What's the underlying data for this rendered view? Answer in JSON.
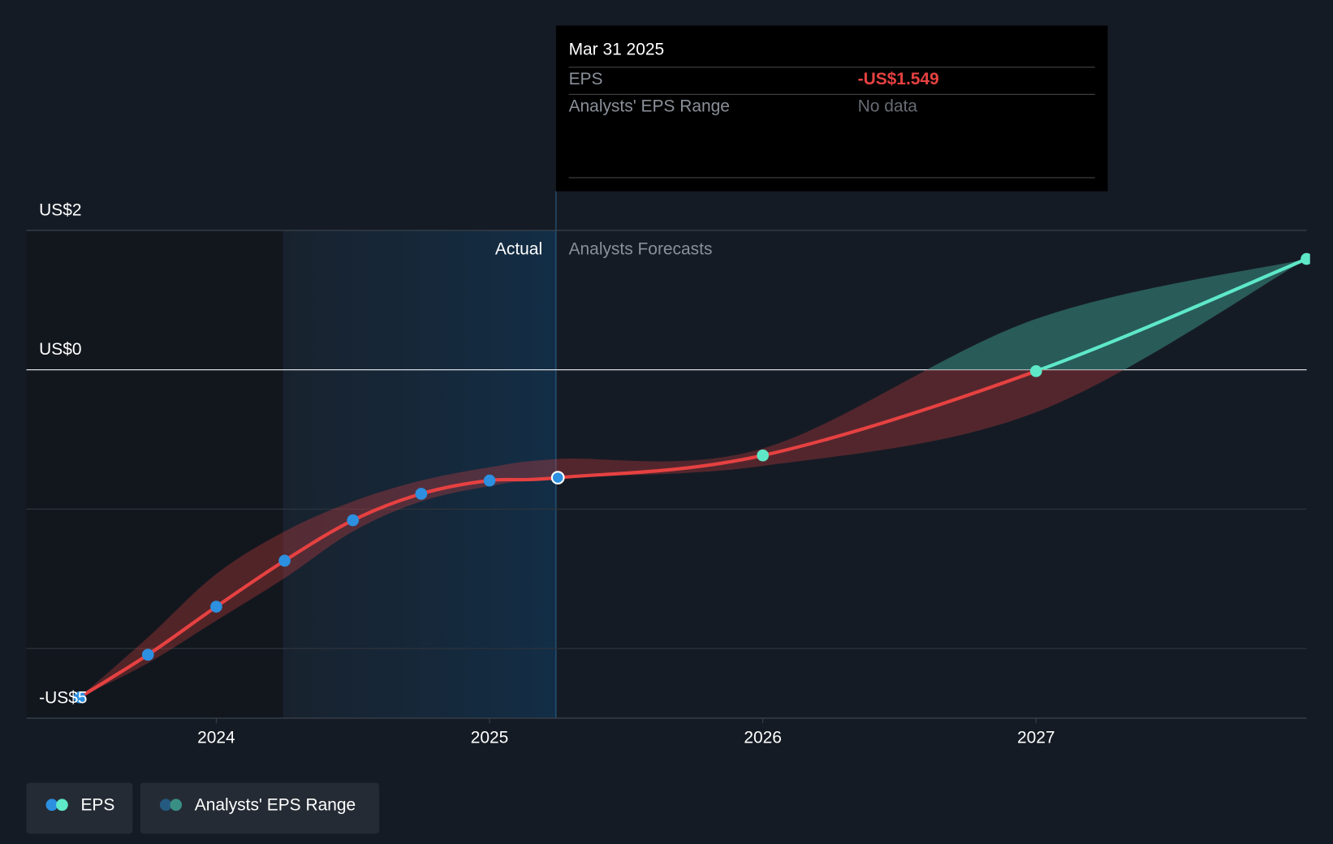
{
  "chart_data": {
    "type": "line",
    "x": [
      2023.5,
      2023.75,
      2024.0,
      2024.25,
      2024.5,
      2024.75,
      2025.0,
      2025.25,
      2026.0,
      2027.0,
      2027.99
    ],
    "xlim": [
      2023.305,
      2027.99
    ],
    "xticks": [
      2024,
      2025,
      2026,
      2027
    ],
    "ylim": [
      -5,
      2
    ],
    "yticks": [
      {
        "value": 2,
        "label": "US$2"
      },
      {
        "value": 0,
        "label": "US$0"
      },
      {
        "value": -5,
        "label": "-US$5"
      }
    ],
    "minor_gridlines": [
      -2,
      -4
    ],
    "series": [
      {
        "name": "EPS",
        "color": "#e64141",
        "positive_color": "#5ee8c8",
        "values": [
          -4.7,
          -4.09,
          -3.4,
          -2.74,
          -2.16,
          -1.78,
          -1.59,
          -1.549,
          -1.23,
          -0.02,
          1.59
        ]
      }
    ],
    "range": {
      "name": "Analysts' EPS Range",
      "color": "#e64141",
      "positive_color": "#3a8f85",
      "lower": [
        -4.7,
        -4.21,
        -3.6,
        -2.99,
        -2.32,
        -1.89,
        -1.67,
        -1.549,
        -1.38,
        -0.61,
        1.59
      ],
      "upper": [
        -4.7,
        -3.84,
        -2.93,
        -2.32,
        -1.89,
        -1.59,
        -1.4,
        -1.28,
        -1.13,
        0.73,
        1.59
      ]
    },
    "actual_count": 8,
    "actual_color": "#2c8fe0",
    "forecast_marker_color": "#5ee8c8",
    "region_labels": {
      "actual": "Actual",
      "forecast": "Analysts Forecasts"
    },
    "tooltip": {
      "date": "Mar 31 2025",
      "rows": [
        {
          "label": "EPS",
          "value": "-US$1.549"
        },
        {
          "label": "Analysts' EPS Range",
          "value": "No data"
        }
      ]
    }
  }
}
